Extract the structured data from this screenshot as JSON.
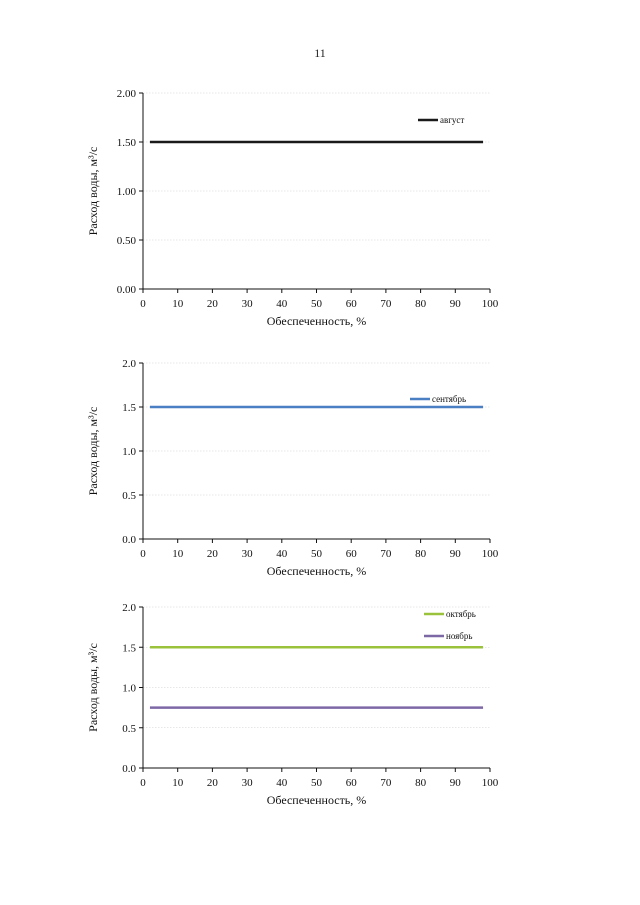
{
  "page": {
    "number": "11"
  },
  "chart_data": [
    {
      "type": "line",
      "title": "",
      "xlabel": "Обеспеченность, %",
      "ylabel": "Расход воды, м³/с",
      "xlim": [
        0,
        100
      ],
      "ylim": [
        0,
        2
      ],
      "xticks": [
        "0",
        "10",
        "20",
        "30",
        "40",
        "50",
        "60",
        "70",
        "80",
        "90",
        "100"
      ],
      "yticks": [
        "0.00",
        "0.50",
        "1.00",
        "1.50",
        "2.00"
      ],
      "grid": true,
      "legend_position": "top-right",
      "series": [
        {
          "name": "август",
          "color": "#1a1a1a",
          "x": [
            2,
            98
          ],
          "values": [
            1.5,
            1.5
          ]
        }
      ]
    },
    {
      "type": "line",
      "title": "",
      "xlabel": "Обеспеченность, %",
      "ylabel": "Расход воды, м³/с",
      "xlim": [
        0,
        100
      ],
      "ylim": [
        0,
        2
      ],
      "xticks": [
        "0",
        "10",
        "20",
        "30",
        "40",
        "50",
        "60",
        "70",
        "80",
        "90",
        "100"
      ],
      "yticks": [
        "0.0",
        "0.5",
        "1.0",
        "1.5",
        "2.0"
      ],
      "grid": true,
      "legend_position": "top-right",
      "series": [
        {
          "name": "сентябрь",
          "color": "#4a7fc4",
          "x": [
            2,
            98
          ],
          "values": [
            1.5,
            1.5
          ]
        }
      ]
    },
    {
      "type": "line",
      "title": "",
      "xlabel": "Обеспеченность, %",
      "ylabel": "Расход воды, м³/с",
      "xlim": [
        0,
        100
      ],
      "ylim": [
        0,
        2
      ],
      "xticks": [
        "0",
        "10",
        "20",
        "30",
        "40",
        "50",
        "60",
        "70",
        "80",
        "90",
        "100"
      ],
      "yticks": [
        "0.0",
        "0.5",
        "1.0",
        "1.5",
        "2.0"
      ],
      "grid": true,
      "legend_position": "top-right",
      "series": [
        {
          "name": "октябрь",
          "color": "#9ac33b",
          "x": [
            2,
            98
          ],
          "values": [
            1.5,
            1.5
          ]
        },
        {
          "name": "ноябрь",
          "color": "#7d68a6",
          "x": [
            2,
            98
          ],
          "values": [
            0.75,
            0.75
          ]
        }
      ]
    }
  ]
}
